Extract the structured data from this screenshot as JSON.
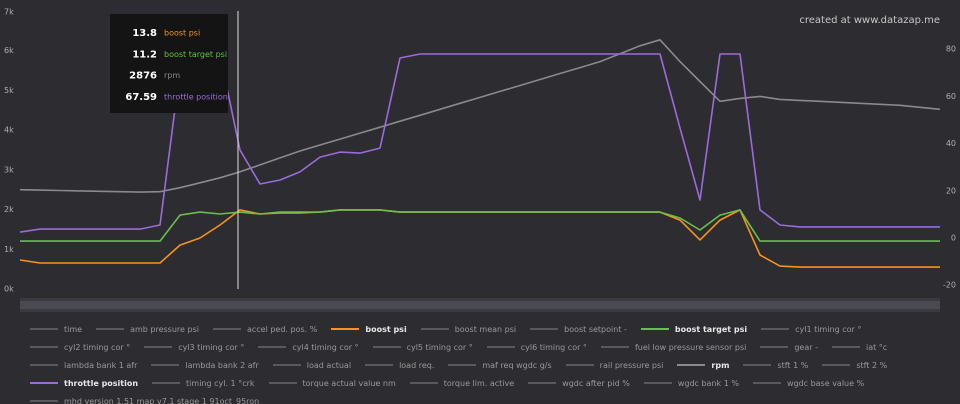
{
  "chart_data": {
    "type": "line",
    "watermark": "created at www.datazap.me",
    "ylim": [
      0,
      7000
    ],
    "yticks": [
      {
        "value": 0,
        "label": "0k"
      },
      {
        "value": 1000,
        "label": "1k"
      },
      {
        "value": 2000,
        "label": "2k"
      },
      {
        "value": 3000,
        "label": "3k"
      },
      {
        "value": 4000,
        "label": "4k"
      },
      {
        "value": 5000,
        "label": "5k"
      },
      {
        "value": 6000,
        "label": "6k"
      },
      {
        "value": 7000,
        "label": "7k"
      }
    ],
    "y2lim": [
      -21.6,
      96.2
    ],
    "y2ticks": [
      -20,
      0,
      20,
      40,
      60,
      80
    ],
    "grid": false,
    "series": [
      {
        "name": "boost psi",
        "color": "#f7931e",
        "axis": "y2",
        "values": [
          -9.3,
          -10.6,
          -10.6,
          -10.6,
          -10.6,
          -10.6,
          -10.6,
          -10.6,
          -3,
          0,
          5.5,
          11.9,
          10.2,
          10.6,
          10.6,
          11,
          11.9,
          11.9,
          11.9,
          11,
          11,
          11,
          11,
          11,
          11,
          11,
          11,
          11,
          11,
          11,
          11,
          11,
          11,
          7.6,
          -0.8,
          7.6,
          11.9,
          -7.2,
          -11.9,
          -12.3,
          -12.3,
          -12.3,
          -12.3,
          -12.3,
          -12.3,
          -12.3,
          -12.3
        ]
      },
      {
        "name": "boost target psi",
        "color": "#6abf4b",
        "axis": "y2",
        "values": [
          -1.3,
          -1.3,
          -1.3,
          -1.3,
          -1.3,
          -1.3,
          -1.3,
          -1.3,
          9.7,
          11,
          10.2,
          11,
          10.2,
          11,
          11,
          11,
          11.9,
          11.9,
          11.9,
          11,
          11,
          11,
          11,
          11,
          11,
          11,
          11,
          11,
          11,
          11,
          11,
          11,
          11,
          8.5,
          3.4,
          9.7,
          11.9,
          -1.3,
          -1.3,
          -1.3,
          -1.3,
          -1.3,
          -1.3,
          -1.3,
          -1.3,
          -1.3,
          -1.3
        ]
      },
      {
        "name": "rpm",
        "color": "#8a8a8a",
        "values": [
          2500,
          2490,
          2480,
          2470,
          2460,
          2450,
          2440,
          2450,
          2550,
          2675,
          2800,
          2950,
          3125,
          3300,
          3475,
          3625,
          3775,
          3925,
          4075,
          4225,
          4375,
          4525,
          4675,
          4825,
          4975,
          5125,
          5275,
          5425,
          5575,
          5725,
          5925,
          6125,
          6275,
          5725,
          5225,
          4725,
          4800,
          4850,
          4775,
          4750,
          4725,
          4700,
          4675,
          4650,
          4625,
          4575,
          4525
        ]
      },
      {
        "name": "throttle position",
        "color": "#9b6bdc",
        "axis": "y2",
        "values": [
          2.5,
          3.8,
          3.8,
          3.8,
          3.8,
          3.8,
          3.8,
          5.5,
          71.2,
          77.5,
          77.5,
          37.3,
          22.9,
          24.6,
          28,
          34.3,
          36.4,
          36,
          38.1,
          76.3,
          78,
          78,
          78,
          78,
          78,
          78,
          78,
          78,
          78,
          78,
          78,
          78,
          78,
          46.6,
          16.1,
          78,
          78,
          11.9,
          5.5,
          4.7,
          4.7,
          4.7,
          4.7,
          4.7,
          4.7,
          4.7,
          4.7
        ]
      }
    ],
    "tooltip_values": [
      13.8,
      11.2,
      2876,
      67.59
    ],
    "channels": [
      "time",
      "amb pressure psi",
      "accel ped. pos. %",
      "boost psi",
      "boost mean psi",
      "boost setpoint -",
      "boost target psi",
      "cyl1 timing cor °",
      "cyl2 timing cor °",
      "cyl3 timing cor °",
      "cyl4 timing cor °",
      "cyl5 timing cor °",
      "cyl6 timing cor °",
      "fuel low pressure sensor psi",
      "gear -",
      "iat °c",
      "lambda bank 1 afr",
      "lambda bank 2 afr",
      "load actual",
      "load req.",
      "maf req wgdc g/s",
      "rail pressure psi",
      "rpm",
      "stft 1 %",
      "stft 2 %",
      "throttle position",
      "timing cyl. 1 °crk",
      "torque actual value nm",
      "torque lim. active",
      "wgdc after pid %",
      "wgdc bank 1 %",
      "wgdc base value %",
      "mhd version 1.51 map v7.1 stage 1 91oct_95ron"
    ]
  }
}
